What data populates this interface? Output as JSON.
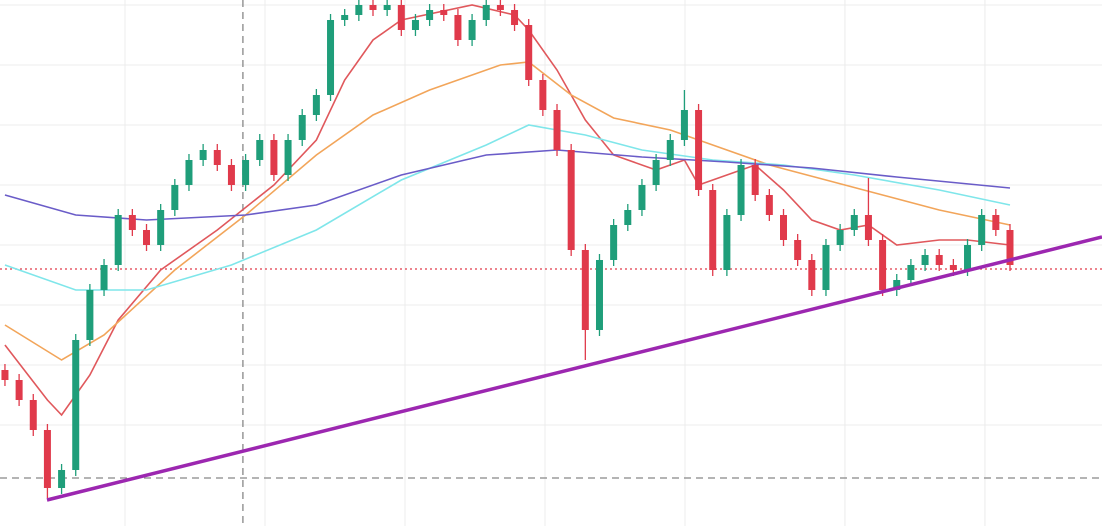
{
  "chart_data": {
    "type": "candlestick",
    "xlim": [
      -0.35,
      77.5
    ],
    "ylim": [
      0,
      526
    ],
    "xticks": [
      8.48,
      18.37,
      28.26,
      38.15,
      48.04,
      59.34,
      69.23
    ],
    "yticks": [
      101,
      161,
      221,
      281,
      341,
      401,
      461,
      521
    ],
    "grid": true,
    "up_color": "#1f9e7a",
    "down_color": "#e03a4b",
    "x": [
      0,
      1,
      2,
      3,
      4,
      5,
      6,
      7,
      8,
      9,
      10,
      11,
      12,
      13,
      14,
      15,
      16,
      17,
      18,
      19,
      20,
      21,
      22,
      23,
      24,
      25,
      26,
      27,
      28,
      29,
      30,
      31,
      32,
      33,
      34,
      35,
      36,
      37,
      38,
      39,
      40,
      41,
      42,
      43,
      44,
      45,
      46,
      47,
      48,
      49,
      50,
      51,
      52,
      53,
      54,
      55,
      56,
      57,
      58,
      59,
      60,
      61,
      62,
      63,
      64,
      65,
      66,
      67,
      68,
      69,
      70,
      71
    ],
    "open": [
      156,
      146,
      126,
      96,
      38,
      56,
      186,
      236,
      261,
      311,
      296,
      281,
      316,
      341,
      366,
      376,
      361,
      341,
      366,
      386,
      351,
      386,
      411,
      431,
      506,
      511,
      521,
      516,
      521,
      496,
      506,
      516,
      511,
      486,
      506,
      521,
      516,
      501,
      446,
      416,
      376,
      276,
      196,
      266,
      301,
      316,
      341,
      366,
      386,
      416,
      336,
      256,
      311,
      361,
      331,
      311,
      286,
      266,
      236,
      281,
      296,
      311,
      286,
      236,
      246,
      261,
      271,
      261,
      256,
      281,
      311,
      296
    ],
    "high": [
      162,
      152,
      132,
      102,
      62,
      192,
      242,
      267,
      317,
      317,
      302,
      322,
      347,
      372,
      382,
      382,
      367,
      372,
      392,
      392,
      392,
      417,
      437,
      512,
      517,
      527,
      527,
      527,
      527,
      512,
      522,
      522,
      517,
      512,
      527,
      527,
      522,
      507,
      452,
      422,
      382,
      282,
      272,
      307,
      322,
      347,
      372,
      392,
      436,
      422,
      342,
      317,
      367,
      367,
      337,
      317,
      292,
      272,
      287,
      302,
      317,
      348,
      292,
      252,
      267,
      277,
      277,
      267,
      287,
      317,
      317,
      302
    ],
    "low": [
      140,
      120,
      90,
      28,
      32,
      50,
      180,
      230,
      255,
      290,
      275,
      275,
      310,
      335,
      360,
      355,
      335,
      335,
      360,
      345,
      345,
      380,
      405,
      425,
      500,
      505,
      510,
      510,
      490,
      490,
      500,
      505,
      480,
      480,
      500,
      510,
      495,
      440,
      410,
      370,
      270,
      166,
      190,
      260,
      295,
      310,
      335,
      360,
      380,
      330,
      250,
      250,
      305,
      325,
      305,
      280,
      260,
      230,
      230,
      275,
      290,
      280,
      230,
      230,
      240,
      255,
      255,
      250,
      250,
      275,
      290,
      255
    ],
    "close": [
      146,
      126,
      96,
      38,
      56,
      186,
      236,
      261,
      311,
      296,
      281,
      316,
      341,
      366,
      376,
      361,
      341,
      366,
      386,
      351,
      386,
      411,
      431,
      506,
      511,
      521,
      516,
      521,
      496,
      506,
      516,
      511,
      486,
      506,
      521,
      516,
      501,
      446,
      416,
      376,
      276,
      196,
      266,
      301,
      316,
      341,
      366,
      386,
      416,
      336,
      256,
      311,
      361,
      331,
      311,
      286,
      266,
      236,
      281,
      296,
      311,
      286,
      236,
      246,
      261,
      271,
      261,
      256,
      281,
      311,
      296,
      261
    ],
    "series": [
      {
        "color": "#e0585c",
        "x": [
          0,
          3,
          4,
          6,
          8,
          11,
          15,
          19,
          22,
          24,
          26,
          28,
          33,
          36,
          37,
          39,
          41,
          43,
          46,
          48,
          49,
          51,
          53,
          55,
          57,
          59,
          61,
          63,
          66,
          68,
          71
        ],
        "values": [
          181,
          126,
          111,
          151,
          206,
          256,
          296,
          341,
          386,
          446,
          486,
          506,
          521,
          511,
          496,
          456,
          406,
          371,
          356,
          366,
          341,
          351,
          361,
          336,
          306,
          296,
          301,
          281,
          286,
          286,
          281
        ]
      },
      {
        "color": "#f2a55a",
        "x": [
          0,
          4,
          7,
          12,
          17,
          22,
          26,
          30,
          35,
          37,
          40,
          43,
          47,
          50,
          54,
          58,
          62,
          66,
          71
        ],
        "values": [
          201,
          166,
          191,
          256,
          311,
          371,
          411,
          436,
          461,
          464,
          431,
          408,
          396,
          381,
          361,
          346,
          331,
          316,
          301
        ]
      },
      {
        "color": "#7fe6ea",
        "x": [
          0,
          5,
          10,
          16,
          22,
          28,
          34,
          37,
          41,
          45,
          50,
          55,
          60,
          66,
          71
        ],
        "values": [
          261,
          236,
          236,
          261,
          296,
          346,
          381,
          401,
          391,
          376,
          366,
          361,
          351,
          336,
          321
        ]
      },
      {
        "color": "#6a5cc8",
        "x": [
          0,
          5,
          10,
          17,
          22,
          28,
          34,
          39,
          45,
          51,
          57,
          63,
          71
        ],
        "values": [
          331,
          311,
          306,
          311,
          321,
          351,
          371,
          376,
          369,
          364,
          358,
          349,
          338
        ]
      }
    ],
    "trend_line": {
      "color": "#9c27b0",
      "x": [
        2.97,
        77.5
      ],
      "values": [
        26,
        289
      ]
    },
    "h_lines": [
      {
        "value": 257,
        "color": "#e03a4b",
        "style": "dotted"
      },
      {
        "value": 48,
        "color": "#888888",
        "style": "dashed"
      }
    ],
    "v_lines": [
      {
        "value": 16.81,
        "color": "#888888",
        "style": "dashed"
      }
    ]
  }
}
